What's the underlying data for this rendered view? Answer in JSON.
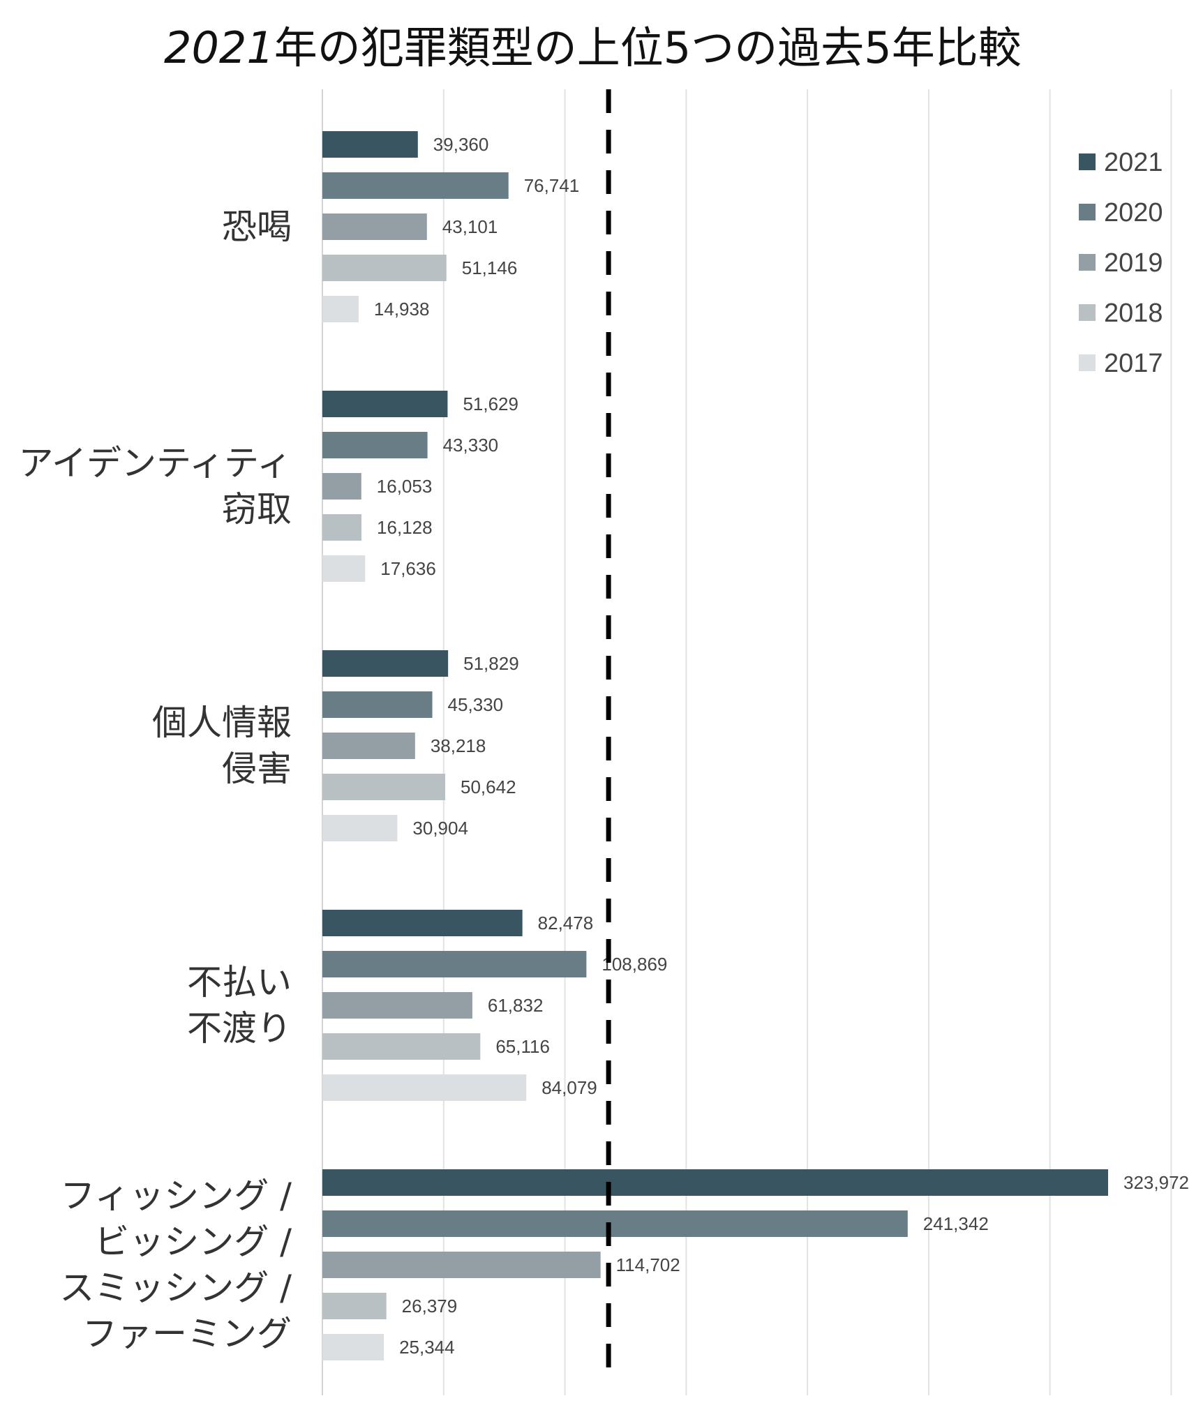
{
  "chart_data": {
    "type": "bar",
    "orientation": "horizontal",
    "title": "2021年の犯罪類型の上位5つの過去5年比較",
    "categories": [
      [
        "恐喝"
      ],
      [
        "アイデンティティ",
        "窃取"
      ],
      [
        "個人情報",
        "侵害"
      ],
      [
        "不払い",
        "不渡り"
      ],
      [
        "フィッシング /",
        "ビッシング /",
        "スミッシング /",
        "ファーミング"
      ]
    ],
    "series": [
      {
        "name": "2021",
        "color": "#3a5562",
        "values": [
          39360,
          51629,
          51829,
          82478,
          323972
        ],
        "labels": [
          "39,360",
          "51,629",
          "51,829",
          "82,478",
          "323,972"
        ]
      },
      {
        "name": "2020",
        "color": "#687d85",
        "values": [
          76741,
          43330,
          45330,
          108869,
          241342
        ],
        "labels": [
          "76,741",
          "43,330",
          "45,330",
          "108,869",
          "241,342"
        ]
      },
      {
        "name": "2019",
        "color": "#939fa5",
        "values": [
          43101,
          16053,
          38218,
          61832,
          114702
        ],
        "labels": [
          "43,101",
          "16,053",
          "38,218",
          "61,832",
          "114,702"
        ]
      },
      {
        "name": "2018",
        "color": "#b9c0c4",
        "values": [
          51146,
          16128,
          50642,
          65116,
          26379
        ],
        "labels": [
          "51,146",
          "16,128",
          "50,642",
          "65,116",
          "26,379"
        ]
      },
      {
        "name": "2017",
        "color": "#dcdfe1",
        "values": [
          14938,
          17636,
          30904,
          84079,
          25344
        ],
        "labels": [
          "14,938",
          "17,636",
          "30,904",
          "84,079",
          "25,344"
        ]
      }
    ],
    "xlim": [
      0,
      350000
    ],
    "grid": true,
    "reference_line": 118000,
    "legend": "top-right"
  }
}
